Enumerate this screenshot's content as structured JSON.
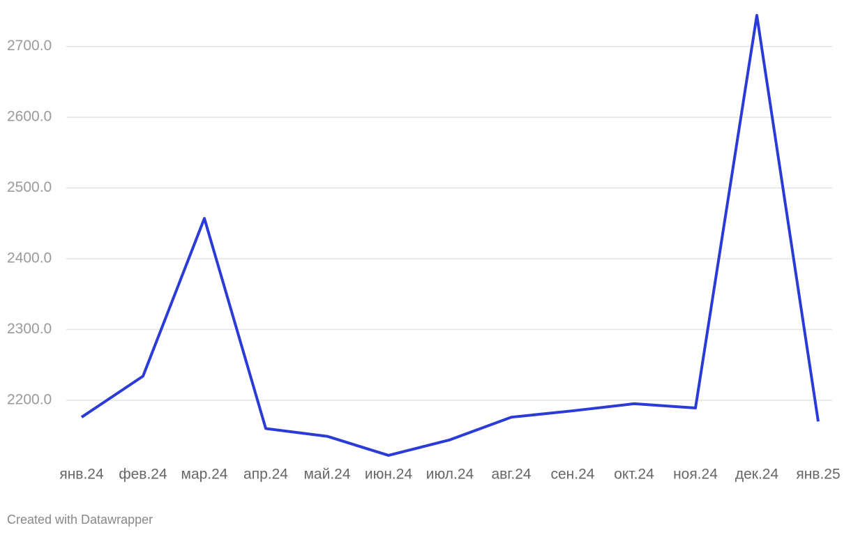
{
  "chart_data": {
    "type": "line",
    "categories": [
      "янв.24",
      "фев.24",
      "мар.24",
      "апр.24",
      "май.24",
      "июн.24",
      "июл.24",
      "авг.24",
      "сен.24",
      "окт.24",
      "ноя.24",
      "дек.24",
      "янв.25"
    ],
    "series": [
      {
        "color": "#2b3bd6",
        "values": [
          2176,
          2234,
          2457,
          2160,
          2149,
          2122,
          2144,
          2176,
          2185,
          2195,
          2189,
          2744,
          2170
        ]
      }
    ],
    "ylim": [
      2120,
      2745
    ],
    "yticks": [
      {
        "value": 2200,
        "label": "2200.0"
      },
      {
        "value": 2300,
        "label": "2300.0"
      },
      {
        "value": 2400,
        "label": "2400.0"
      },
      {
        "value": 2500,
        "label": "2500.0"
      },
      {
        "value": 2600,
        "label": "2600.0"
      },
      {
        "value": 2700,
        "label": "2700.0"
      }
    ],
    "grid": true,
    "footer": "Created with Datawrapper"
  }
}
